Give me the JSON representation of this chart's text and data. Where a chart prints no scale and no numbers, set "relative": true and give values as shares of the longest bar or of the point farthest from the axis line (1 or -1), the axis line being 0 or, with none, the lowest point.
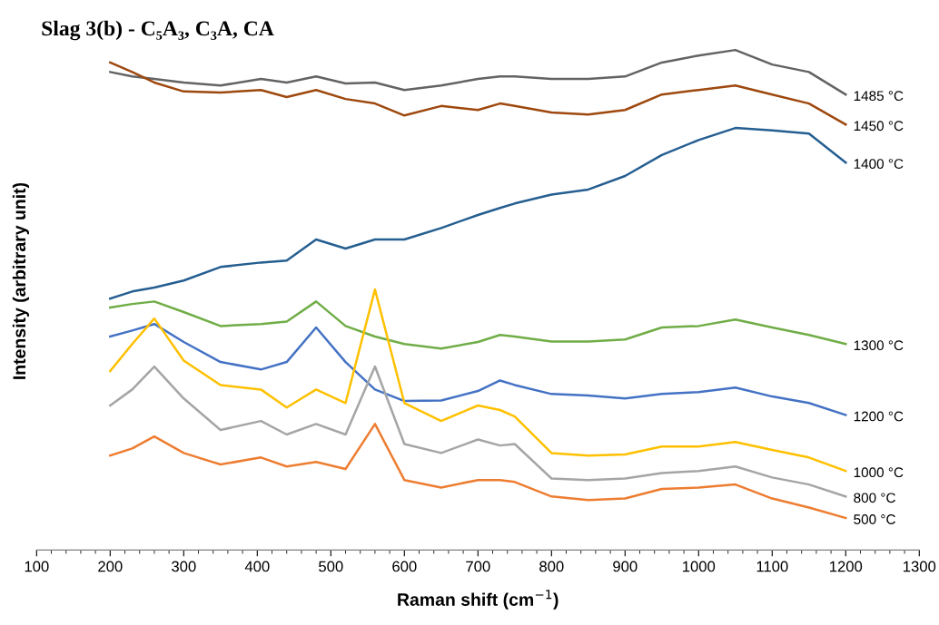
{
  "chart_data": {
    "type": "line",
    "title": "Slag 3(b) - C₅A₃, C₃A, CA",
    "xlabel": "Raman shift (cm$^{−1}$)",
    "ylabel": "Intensity (arbitrary unit)",
    "relative": true,
    "x": [
      200,
      230,
      260,
      300,
      350,
      405,
      440,
      480,
      520,
      560,
      600,
      650,
      700,
      730,
      750,
      800,
      850,
      900,
      950,
      1000,
      1050,
      1100,
      1150,
      1200
    ],
    "xlim": [
      100,
      1300
    ],
    "xticks": [
      100,
      200,
      300,
      400,
      500,
      600,
      700,
      800,
      900,
      1000,
      1100,
      1200,
      1300
    ],
    "grid": false,
    "legend": false,
    "marker": "none",
    "line_style": "solid",
    "series": [
      {
        "name": "1485 °C",
        "color": "#636363",
        "values": [
          0.956,
          0.947,
          0.942,
          0.935,
          0.929,
          0.942,
          0.935,
          0.947,
          0.933,
          0.935,
          0.92,
          0.929,
          0.942,
          0.947,
          0.947,
          0.942,
          0.942,
          0.947,
          0.975,
          0.989,
          1.0,
          0.971,
          0.956,
          0.911
        ]
      },
      {
        "name": "1450 °C",
        "color": "#9e480e",
        "values": [
          0.975,
          0.956,
          0.935,
          0.917,
          0.915,
          0.92,
          0.906,
          0.92,
          0.902,
          0.893,
          0.869,
          0.888,
          0.88,
          0.893,
          0.888,
          0.875,
          0.871,
          0.88,
          0.911,
          0.92,
          0.929,
          0.911,
          0.893,
          0.851
        ]
      },
      {
        "name": "1400 °C",
        "color": "#255e91",
        "values": [
          0.503,
          0.517,
          0.525,
          0.539,
          0.566,
          0.575,
          0.579,
          0.621,
          0.603,
          0.621,
          0.621,
          0.644,
          0.67,
          0.684,
          0.693,
          0.711,
          0.721,
          0.748,
          0.79,
          0.82,
          0.844,
          0.839,
          0.833,
          0.775
        ]
      },
      {
        "name": "1300 °C",
        "color": "#70ad47",
        "values": [
          0.485,
          0.492,
          0.497,
          0.476,
          0.448,
          0.452,
          0.457,
          0.497,
          0.448,
          0.427,
          0.412,
          0.403,
          0.416,
          0.43,
          0.427,
          0.417,
          0.417,
          0.421,
          0.445,
          0.448,
          0.461,
          0.445,
          0.43,
          0.412
        ]
      },
      {
        "name": "1200 °C",
        "color": "#4472c4",
        "values": [
          0.427,
          0.439,
          0.452,
          0.416,
          0.376,
          0.361,
          0.376,
          0.445,
          0.376,
          0.321,
          0.298,
          0.299,
          0.318,
          0.339,
          0.33,
          0.312,
          0.309,
          0.303,
          0.312,
          0.316,
          0.325,
          0.307,
          0.294,
          0.27
        ]
      },
      {
        "name": "1000 °C",
        "color": "#ffc000",
        "values": [
          0.358,
          0.412,
          0.463,
          0.379,
          0.33,
          0.321,
          0.285,
          0.321,
          0.294,
          0.521,
          0.294,
          0.258,
          0.289,
          0.28,
          0.267,
          0.194,
          0.189,
          0.191,
          0.207,
          0.207,
          0.216,
          0.2,
          0.185,
          0.158
        ]
      },
      {
        "name": "800 °C",
        "color": "#a5a5a5",
        "values": [
          0.289,
          0.321,
          0.367,
          0.303,
          0.24,
          0.258,
          0.231,
          0.252,
          0.231,
          0.367,
          0.212,
          0.194,
          0.221,
          0.209,
          0.212,
          0.143,
          0.14,
          0.143,
          0.154,
          0.158,
          0.167,
          0.145,
          0.131,
          0.107
        ]
      },
      {
        "name": "500 °C",
        "color": "#ed7d31",
        "values": [
          0.189,
          0.203,
          0.227,
          0.194,
          0.171,
          0.185,
          0.167,
          0.176,
          0.162,
          0.252,
          0.14,
          0.125,
          0.14,
          0.14,
          0.136,
          0.107,
          0.1,
          0.103,
          0.122,
          0.125,
          0.131,
          0.103,
          0.085,
          0.064
        ]
      }
    ]
  }
}
